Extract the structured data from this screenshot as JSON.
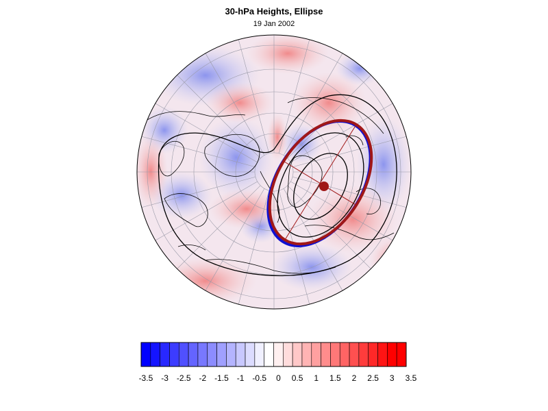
{
  "map": {
    "title": "30-hPa Heights, Ellipse",
    "subtitle": "19 Jan 2002",
    "projection": "north-polar-stereographic",
    "ellipse_colors": {
      "outer_blue": "#1010d0",
      "outer_red": "#a01818",
      "center_dot": "#a01818"
    }
  },
  "colorbar": {
    "labels": [
      "-3.5",
      "-3",
      "-2.5",
      "-2",
      "-1.5",
      "-1",
      "-0.5",
      "0",
      "0.5",
      "1",
      "1.5",
      "2",
      "2.5",
      "3",
      "3.5"
    ],
    "colors": [
      "#0000ff",
      "#1414ff",
      "#2828ff",
      "#3c3cff",
      "#5050ff",
      "#6464ff",
      "#7878ff",
      "#8c8cff",
      "#a0a0ff",
      "#b4b4ff",
      "#c8c8ff",
      "#dcdcff",
      "#f0f0ff",
      "#ffffff",
      "#fff0f0",
      "#ffdcdc",
      "#ffc8c8",
      "#ffb4b4",
      "#ffa0a0",
      "#ff8c8c",
      "#ff7878",
      "#ff6464",
      "#ff5050",
      "#ff3c3c",
      "#ff2828",
      "#ff1414",
      "#ff0000",
      "#ff0000"
    ]
  }
}
